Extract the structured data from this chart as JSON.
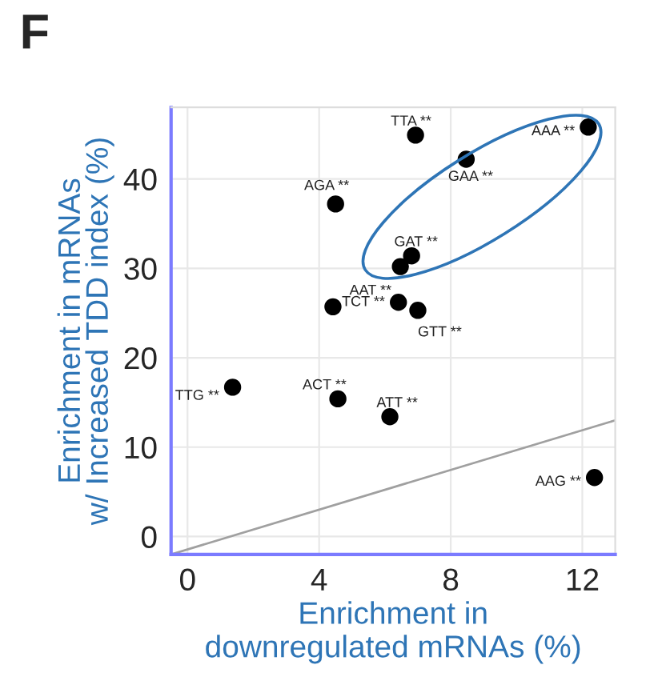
{
  "chart_data": {
    "type": "scatter",
    "title": "F",
    "xlabel": "Enrichment in\ndownregulated mRNAs (%)",
    "ylabel": "Enrichment in mRNAs\nw/ Increased TDD index (%)",
    "series": [
      {
        "color": "#000000",
        "marker": "circle",
        "x": [
          6.93,
          12.18,
          8.47,
          4.5,
          6.81,
          6.47,
          4.42,
          6.41,
          7.0,
          1.37,
          4.57,
          6.15,
          12.37
        ],
        "values": [
          44.9,
          45.8,
          42.2,
          37.2,
          31.4,
          30.2,
          25.7,
          26.2,
          25.3,
          16.7,
          15.4,
          13.4,
          6.6
        ]
      },
      {
        "type": "line",
        "color": "#a0a0a0",
        "x": [
          -0.5,
          13.0
        ],
        "values": [
          -2,
          13
        ]
      }
    ],
    "annotations": [
      {
        "text": "TTA **",
        "x": 6.93,
        "y": 44.9
      },
      {
        "text": "AAA **",
        "x": 12.18,
        "y": 45.8
      },
      {
        "text": "GAA **",
        "x": 8.47,
        "y": 42.2
      },
      {
        "text": "AGA **",
        "x": 4.5,
        "y": 37.2
      },
      {
        "text": "GAT **",
        "x": 6.81,
        "y": 31.4
      },
      {
        "text": "AAT **",
        "x": 6.47,
        "y": 30.2
      },
      {
        "text": "TCT **",
        "x": 4.42,
        "y": 25.7
      },
      {
        "text": "GTT **",
        "x": 7.0,
        "y": 25.3
      },
      {
        "text": "TTG **",
        "x": 1.37,
        "y": 16.7
      },
      {
        "text": "ACT **",
        "x": 4.57,
        "y": 15.4
      },
      {
        "text": "ATT **",
        "x": 6.15,
        "y": 13.4
      },
      {
        "text": "AAG **",
        "x": 12.37,
        "y": 6.6
      }
    ],
    "xlim": [
      -0.5,
      13.0
    ],
    "ylim": [
      -2,
      48
    ],
    "xticks": [
      0,
      4,
      8,
      12
    ],
    "yticks": [
      0,
      10,
      20,
      30,
      40
    ],
    "grid": true
  }
}
